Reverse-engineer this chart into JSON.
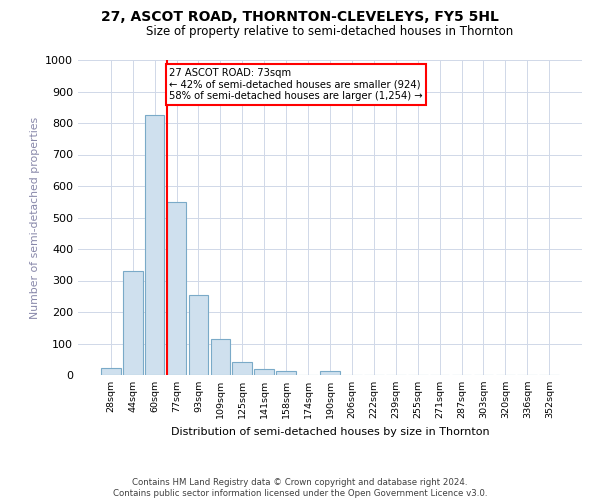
{
  "title": "27, ASCOT ROAD, THORNTON-CLEVELEYS, FY5 5HL",
  "subtitle": "Size of property relative to semi-detached houses in Thornton",
  "xlabel": "Distribution of semi-detached houses by size in Thornton",
  "ylabel": "Number of semi-detached properties",
  "bar_labels": [
    "28sqm",
    "44sqm",
    "60sqm",
    "77sqm",
    "93sqm",
    "109sqm",
    "125sqm",
    "141sqm",
    "158sqm",
    "174sqm",
    "190sqm",
    "206sqm",
    "222sqm",
    "239sqm",
    "255sqm",
    "271sqm",
    "287sqm",
    "303sqm",
    "320sqm",
    "336sqm",
    "352sqm"
  ],
  "bar_values": [
    22,
    330,
    825,
    550,
    255,
    115,
    42,
    20,
    14,
    0,
    12,
    0,
    0,
    0,
    0,
    0,
    0,
    0,
    0,
    0,
    0
  ],
  "bar_color": "#cfe0ee",
  "bar_edge_color": "#7aaac8",
  "annotation_text": "27 ASCOT ROAD: 73sqm\n← 42% of semi-detached houses are smaller (924)\n58% of semi-detached houses are larger (1,254) →",
  "ylim": [
    0,
    1000
  ],
  "yticks": [
    0,
    100,
    200,
    300,
    400,
    500,
    600,
    700,
    800,
    900,
    1000
  ],
  "footer_line1": "Contains HM Land Registry data © Crown copyright and database right 2024.",
  "footer_line2": "Contains public sector information licensed under the Open Government Licence v3.0.",
  "grid_color": "#d0d8e8",
  "ylabel_color": "#8888aa",
  "title_fontsize": 10,
  "subtitle_fontsize": 8.5
}
